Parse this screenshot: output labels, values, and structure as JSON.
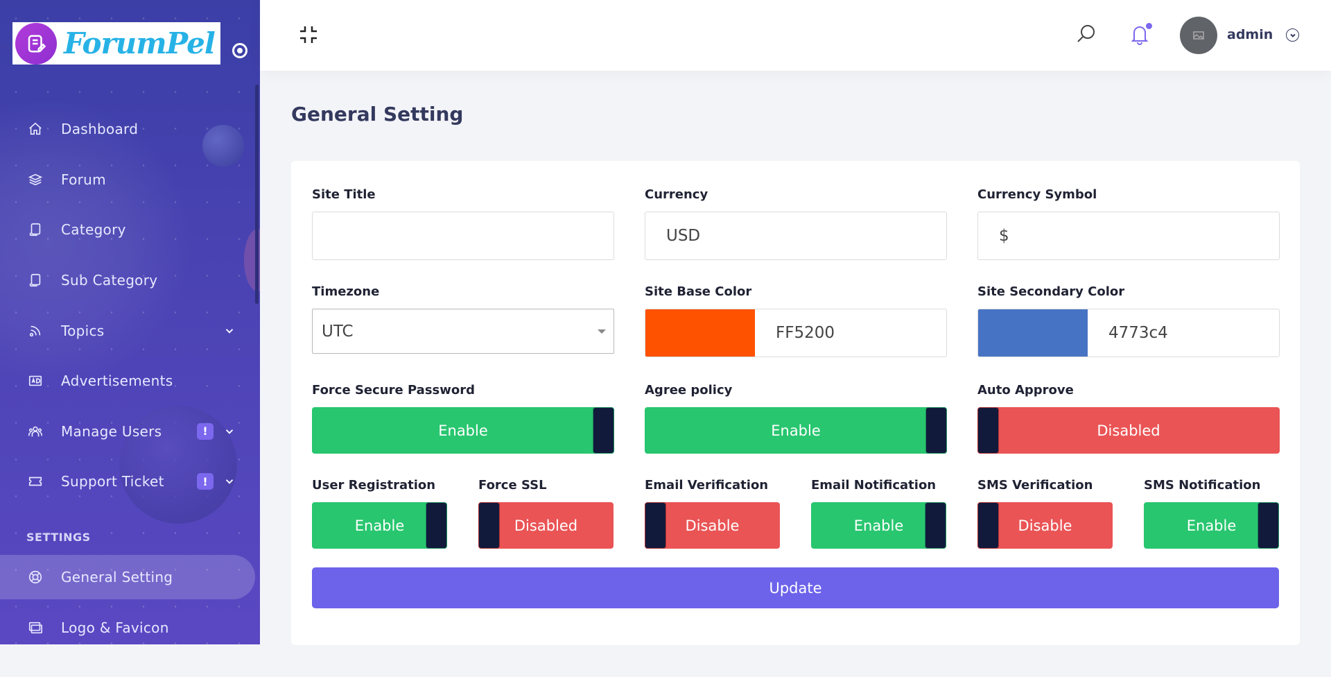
{
  "brand": {
    "name": "ForumPel"
  },
  "sidebar": {
    "items": [
      {
        "label": "Dashboard"
      },
      {
        "label": "Forum"
      },
      {
        "label": "Category"
      },
      {
        "label": "Sub Category"
      },
      {
        "label": "Topics"
      },
      {
        "label": "Advertisements"
      },
      {
        "label": "Manage Users",
        "badge": "!"
      },
      {
        "label": "Support Ticket",
        "badge": "!"
      }
    ],
    "section_title": "SETTINGS",
    "settings_items": [
      {
        "label": "General Setting",
        "active": true
      },
      {
        "label": "Logo & Favicon"
      }
    ]
  },
  "topbar": {
    "user": "admin"
  },
  "page": {
    "title": "General Setting"
  },
  "form": {
    "site_title": {
      "label": "Site Title",
      "value": ""
    },
    "currency": {
      "label": "Currency",
      "value": "USD"
    },
    "currency_symbol": {
      "label": "Currency Symbol",
      "value": "$"
    },
    "timezone": {
      "label": "Timezone",
      "value": "UTC"
    },
    "base_color": {
      "label": "Site Base Color",
      "value": "FF5200",
      "swatch": "#FF5200"
    },
    "secondary_color": {
      "label": "Site Secondary Color",
      "value": "4773c4",
      "swatch": "#4773c4"
    },
    "force_secure_password": {
      "label": "Force Secure Password",
      "state": "Enable"
    },
    "agree_policy": {
      "label": "Agree policy",
      "state": "Enable"
    },
    "auto_approve": {
      "label": "Auto Approve",
      "state": "Disabled"
    },
    "user_registration": {
      "label": "User Registration",
      "state": "Enable"
    },
    "force_ssl": {
      "label": "Force SSL",
      "state": "Disabled"
    },
    "email_verification": {
      "label": "Email Verification",
      "state": "Disable"
    },
    "email_notification": {
      "label": "Email Notification",
      "state": "Enable"
    },
    "sms_verification": {
      "label": "SMS Verification",
      "state": "Disable"
    },
    "sms_notification": {
      "label": "SMS Notification",
      "state": "Enable"
    },
    "update_label": "Update"
  },
  "colors": {
    "accent": "#6c63ea",
    "enable": "#28c66f",
    "disable": "#ea5455"
  }
}
